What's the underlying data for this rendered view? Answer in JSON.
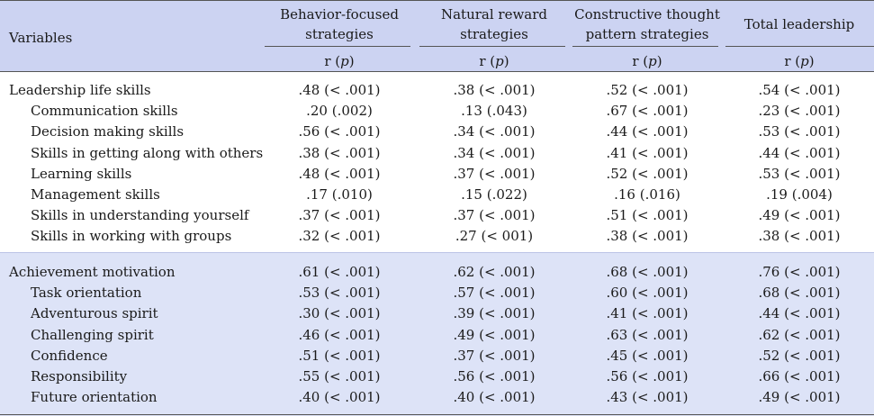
{
  "header": {
    "variables": "Variables",
    "columns": [
      {
        "line1": "Behavior-focused",
        "line2": "strategies",
        "sub": "r (p)"
      },
      {
        "line1": "Natural reward",
        "line2": "strategies",
        "sub": "r (p)"
      },
      {
        "line1": "Constructive thought",
        "line2": "pattern strategies",
        "sub": "r (p)"
      },
      {
        "line1": "Total leadership",
        "line2": "",
        "sub": "r (p)"
      }
    ]
  },
  "sections": [
    {
      "rows": [
        {
          "label": "Leadership life skills",
          "v": [
            ".48 (< .001)",
            ".38 (< .001)",
            ".52 (< .001)",
            ".54 (< .001)"
          ]
        },
        {
          "label": "Communication skills",
          "v": [
            ".20 (.002)",
            ".13 (.043)",
            ".67 (< .001)",
            ".23 (< .001)"
          ]
        },
        {
          "label": "Decision making skills",
          "v": [
            ".56 (< .001)",
            ".34 (< .001)",
            ".44 (< .001)",
            ".53 (< .001)"
          ]
        },
        {
          "label": "Skills in getting along with others",
          "v": [
            ".38 (< .001)",
            ".34 (< .001)",
            ".41 (< .001)",
            ".44 (< .001)"
          ]
        },
        {
          "label": "Learning skills",
          "v": [
            ".48 (< .001)",
            ".37 (< .001)",
            ".52 (< .001)",
            ".53 (< .001)"
          ]
        },
        {
          "label": "Management skills",
          "v": [
            ".17 (.010)",
            ".15 (.022)",
            ".16 (.016)",
            ".19 (.004)"
          ]
        },
        {
          "label": "Skills in understanding yourself",
          "v": [
            ".37 (< .001)",
            ".37 (< .001)",
            ".51 (< .001)",
            ".49 (< .001)"
          ]
        },
        {
          "label": "Skills in working with groups",
          "v": [
            ".32 (< .001)",
            ".27 (< 001)",
            ".38 (< .001)",
            ".38 (< .001)"
          ]
        }
      ]
    },
    {
      "rows": [
        {
          "label": "Achievement motivation",
          "v": [
            ".61 (< .001)",
            ".62 (< .001)",
            ".68 (< .001)",
            ".76 (< .001)"
          ]
        },
        {
          "label": "Task orientation",
          "v": [
            ".53 (< .001)",
            ".57 (< .001)",
            ".60 (< .001)",
            ".68 (< .001)"
          ]
        },
        {
          "label": "Adventurous spirit",
          "v": [
            ".30 (< .001)",
            ".39 (< .001)",
            ".41 (< .001)",
            ".44 (< .001)"
          ]
        },
        {
          "label": "Challenging spirit",
          "v": [
            ".46 (< .001)",
            ".49 (< .001)",
            ".63 (< .001)",
            ".62 (< .001)"
          ]
        },
        {
          "label": "Confidence",
          "v": [
            ".51 (< .001)",
            ".37 (< .001)",
            ".45 (< .001)",
            ".52 (< .001)"
          ]
        },
        {
          "label": "Responsibility",
          "v": [
            ".55 (< .001)",
            ".56 (< .001)",
            ".56 (< .001)",
            ".66 (< .001)"
          ]
        },
        {
          "label": "Future orientation",
          "v": [
            ".40 (< .001)",
            ".40 (< .001)",
            ".43 (< .001)",
            ".49 (< .001)"
          ]
        }
      ]
    }
  ]
}
